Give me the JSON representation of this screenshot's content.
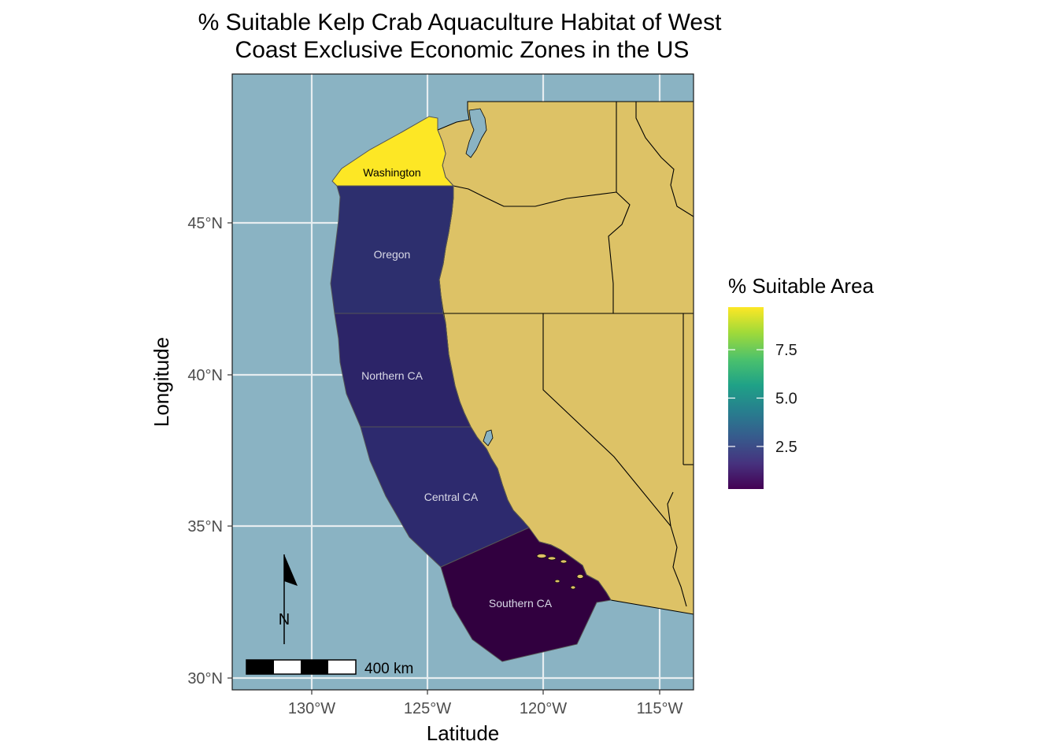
{
  "title_line1": "% Suitable Kelp Crab Aquaculture Habitat of West",
  "title_line2": "Coast Exclusive Economic Zones in the US",
  "x_axis_title": "Latitude",
  "y_axis_title": "Longitude",
  "x_ticks": [
    "130°W",
    "125°W",
    "120°W",
    "115°W"
  ],
  "y_ticks": [
    "45°N",
    "40°N",
    "35°N",
    "30°N"
  ],
  "legend": {
    "title": "% Suitable Area",
    "ticks": [
      "7.5",
      "5.0",
      "2.5"
    ],
    "tick_values": [
      7.5,
      5.0,
      2.5
    ],
    "range": [
      0.3,
      9.7
    ],
    "colors": [
      "#fde725",
      "#a0da39",
      "#4ac16d",
      "#1fa187",
      "#277f8e",
      "#365c8d",
      "#46327e",
      "#440154"
    ]
  },
  "regions": [
    {
      "name": "Washington",
      "value": 9.6,
      "fill": "#fde725",
      "label_color": "#000000"
    },
    {
      "name": "Oregon",
      "value": 2.2,
      "fill": "#2d2f6e",
      "label_color": "#d9d9e6"
    },
    {
      "name": "Northern CA",
      "value": 1.7,
      "fill": "#2c2468",
      "label_color": "#d9d9e6"
    },
    {
      "name": "Central CA",
      "value": 2.1,
      "fill": "#2d2a6e",
      "label_color": "#d9d9e6"
    },
    {
      "name": "Southern CA",
      "value": 0.3,
      "fill": "#31003f",
      "label_color": "#d9d9e6"
    }
  ],
  "colors": {
    "ocean": "#8ab3c3",
    "land": "#ddc266",
    "grid": "#e8eef0"
  },
  "scale_bar_label": "400 km",
  "north_arrow_label": "N"
}
